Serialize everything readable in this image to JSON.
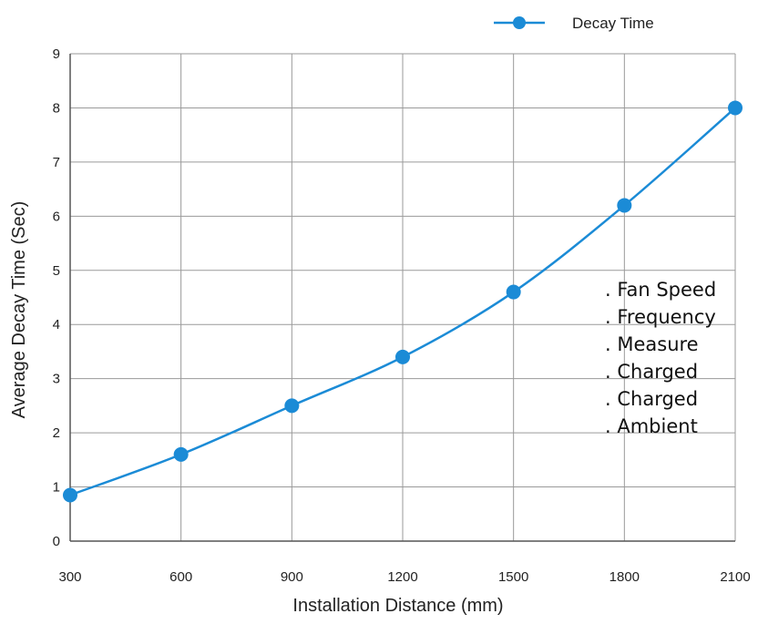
{
  "chart_data": {
    "type": "line",
    "xlabel": "Installation Distance (mm)",
    "ylabel": "Average Decay Time (Sec)",
    "x": [
      300,
      600,
      900,
      1200,
      1500,
      1800,
      2100
    ],
    "xlim": [
      300,
      2100
    ],
    "ylim": [
      0,
      9
    ],
    "x_ticks": [
      "300",
      "600",
      "900",
      "1200",
      "1500",
      "1800",
      "2100"
    ],
    "y_ticks": [
      "0",
      "1",
      "2",
      "3",
      "4",
      "5",
      "6",
      "7",
      "8",
      "9"
    ],
    "grid": true,
    "legend_position": "top-right",
    "series": [
      {
        "name": "Decay Time",
        "color": "#1b8bd6",
        "values": [
          0.85,
          1.6,
          2.5,
          3.4,
          4.6,
          6.2,
          8.0
        ]
      }
    ],
    "annotations": [
      ".  Fan Speed",
      ".  Frequency",
      ".  Measure",
      ". Charged",
      ". Charged",
      ".  Ambient"
    ]
  }
}
